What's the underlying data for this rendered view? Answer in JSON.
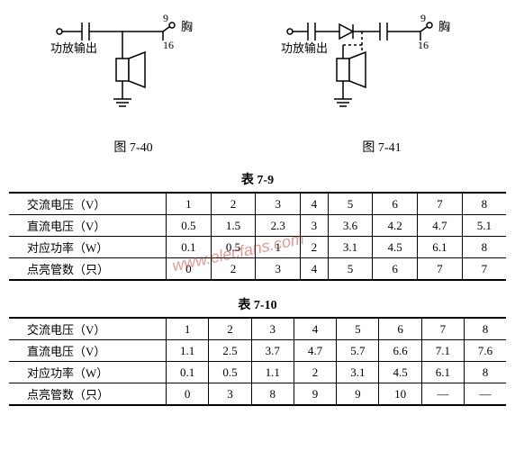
{
  "diagrams": {
    "left": {
      "amp_label": "功放输出",
      "pin_top": "9",
      "pin_bottom": "16",
      "side_label": "胸",
      "caption": "图 7-40"
    },
    "right": {
      "amp_label": "功放输出",
      "pin_top": "9",
      "pin_bottom": "16",
      "side_label": "胸",
      "caption": "图 7-41"
    }
  },
  "table1": {
    "title": "表 7-9",
    "rows": [
      {
        "label": "交流电压（V）",
        "cells": [
          "1",
          "2",
          "3",
          "4",
          "5",
          "6",
          "7",
          "8"
        ]
      },
      {
        "label": "直流电压（V）",
        "cells": [
          "0.5",
          "1.5",
          "2.3",
          "3",
          "3.6",
          "4.2",
          "4.7",
          "5.1"
        ]
      },
      {
        "label": "对应功率（W）",
        "cells": [
          "0.1",
          "0.5",
          "1",
          "2",
          "3.1",
          "4.5",
          "6.1",
          "8"
        ]
      },
      {
        "label": "点亮管数（只）",
        "cells": [
          "0",
          "2",
          "3",
          "4",
          "5",
          "6",
          "7",
          "7"
        ]
      }
    ]
  },
  "table2": {
    "title": "表 7-10",
    "rows": [
      {
        "label": "交流电压（V）",
        "cells": [
          "1",
          "2",
          "3",
          "4",
          "5",
          "6",
          "7",
          "8"
        ]
      },
      {
        "label": "直流电压（V）",
        "cells": [
          "1.1",
          "2.5",
          "3.7",
          "4.7",
          "5.7",
          "6.6",
          "7.1",
          "7.6"
        ]
      },
      {
        "label": "对应功率（W）",
        "cells": [
          "0.1",
          "0.5",
          "1.1",
          "2",
          "3.1",
          "4.5",
          "6.1",
          "8"
        ]
      },
      {
        "label": "点亮管数（只）",
        "cells": [
          "0",
          "3",
          "8",
          "9",
          "9",
          "10",
          "—",
          "—"
        ]
      }
    ]
  },
  "watermark": "www.elecfans.com",
  "colors": {
    "stroke": "#000000",
    "bg": "#ffffff",
    "watermark": "rgba(200,50,50,0.5)"
  }
}
